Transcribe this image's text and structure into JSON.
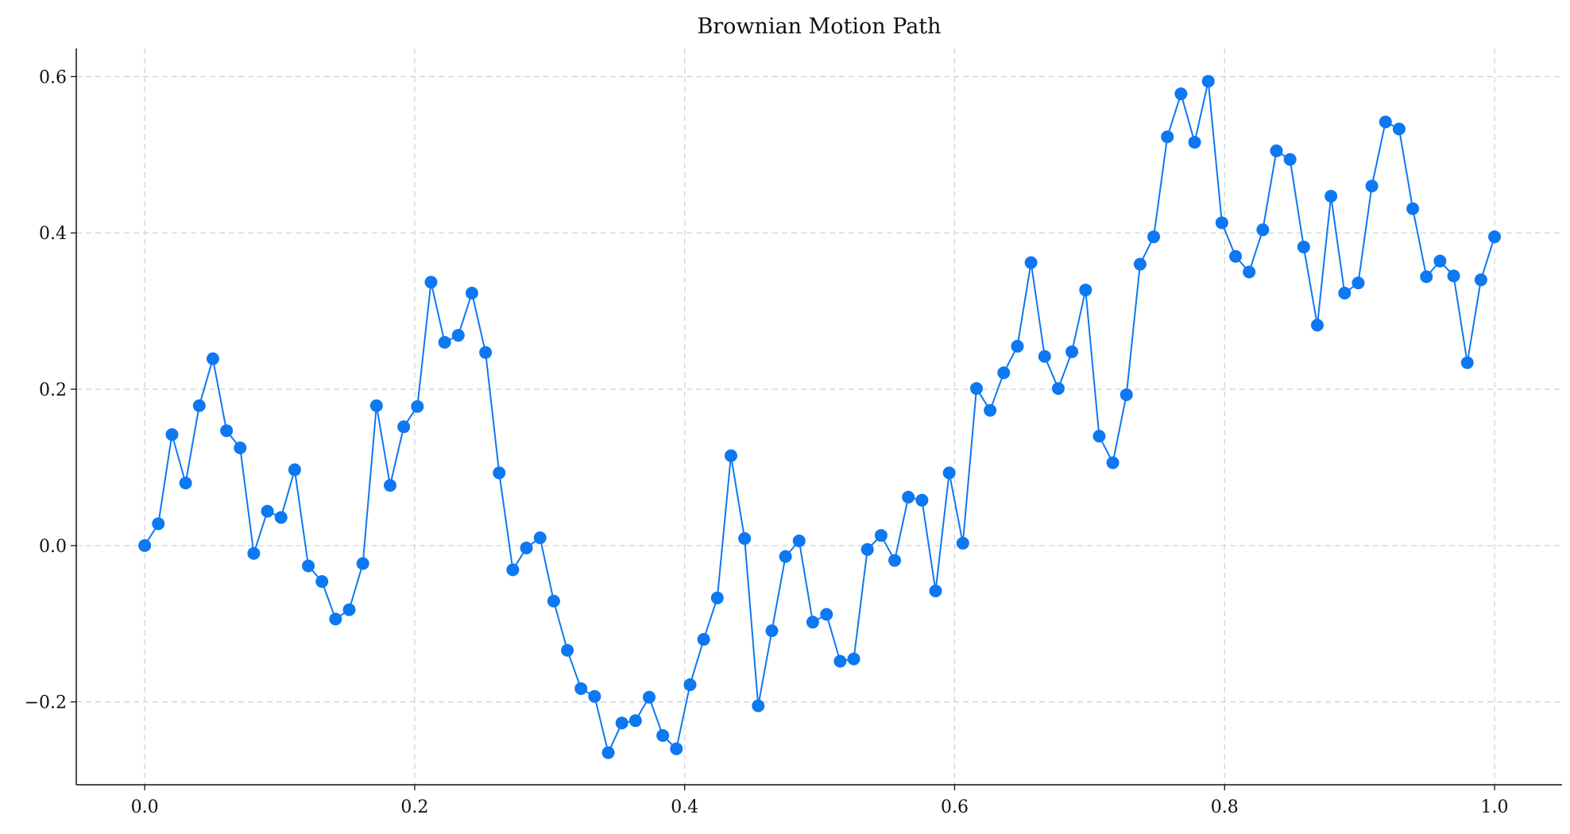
{
  "chart_data": {
    "type": "line",
    "title": "Brownian Motion Path",
    "x": [
      0,
      0.0101,
      0.0202,
      0.0303,
      0.0404,
      0.0505,
      0.0606,
      0.0707,
      0.0808,
      0.0909,
      0.101,
      0.1111,
      0.1212,
      0.1313,
      0.1414,
      0.1515,
      0.1616,
      0.1717,
      0.1818,
      0.1919,
      0.202,
      0.2121,
      0.2222,
      0.2323,
      0.2424,
      0.2525,
      0.2626,
      0.2727,
      0.2828,
      0.2929,
      0.303,
      0.3131,
      0.3232,
      0.3333,
      0.3434,
      0.3535,
      0.3636,
      0.3737,
      0.3838,
      0.3939,
      0.404,
      0.4141,
      0.4242,
      0.4343,
      0.4444,
      0.4545,
      0.4646,
      0.4747,
      0.4848,
      0.4949,
      0.5051,
      0.5152,
      0.5253,
      0.5354,
      0.5455,
      0.5556,
      0.5657,
      0.5758,
      0.5859,
      0.596,
      0.6061,
      0.6162,
      0.6263,
      0.6364,
      0.6465,
      0.6566,
      0.6667,
      0.6768,
      0.6869,
      0.697,
      0.7071,
      0.7172,
      0.7273,
      0.7374,
      0.7475,
      0.7576,
      0.7677,
      0.7778,
      0.7879,
      0.798,
      0.8081,
      0.8182,
      0.8283,
      0.8384,
      0.8485,
      0.8586,
      0.8687,
      0.8788,
      0.8889,
      0.899,
      0.9091,
      0.9192,
      0.9293,
      0.9394,
      0.9495,
      0.9596,
      0.9697,
      0.9798,
      0.9899,
      1
    ],
    "values": [
      0,
      0.028,
      0.142,
      0.08,
      0.179,
      0.239,
      0.147,
      0.125,
      -0.01,
      0.044,
      0.036,
      0.097,
      -0.026,
      -0.046,
      -0.094,
      -0.082,
      -0.023,
      0.179,
      0.077,
      0.152,
      0.178,
      0.337,
      0.26,
      0.269,
      0.323,
      0.247,
      0.093,
      -0.031,
      -0.003,
      0.01,
      -0.071,
      -0.134,
      -0.183,
      -0.193,
      -0.265,
      -0.227,
      -0.224,
      -0.194,
      -0.243,
      -0.26,
      -0.178,
      -0.12,
      -0.067,
      0.115,
      0.009,
      -0.205,
      -0.109,
      -0.014,
      0.006,
      -0.098,
      -0.088,
      -0.148,
      -0.145,
      -0.005,
      0.013,
      -0.019,
      0.062,
      0.058,
      -0.058,
      0.093,
      0.003,
      0.201,
      0.173,
      0.221,
      0.255,
      0.362,
      0.242,
      0.201,
      0.248,
      0.327,
      0.14,
      0.106,
      0.193,
      0.36,
      0.395,
      0.523,
      0.578,
      0.516,
      0.594,
      0.413,
      0.37,
      0.35,
      0.404,
      0.505,
      0.494,
      0.382,
      0.282,
      0.447,
      0.323,
      0.336,
      0.46,
      0.542,
      0.533,
      0.431,
      0.344,
      0.364,
      0.345,
      0.234,
      0.34,
      0.395
    ],
    "color": "#0d78f2",
    "xlim": [
      -0.0507,
      1.05
    ],
    "ylim": [
      -0.306,
      0.636
    ],
    "xticks": [
      {
        "value": 0,
        "label": "0.0"
      },
      0.2,
      0.4,
      0.6,
      0.8,
      {
        "value": 1,
        "label": "1.0"
      }
    ],
    "yticks": [
      {
        "value": -0.2,
        "label": "−0.2"
      },
      {
        "value": 0,
        "label": "0.0"
      },
      0.2,
      0.4,
      0.6
    ],
    "grid": true
  }
}
